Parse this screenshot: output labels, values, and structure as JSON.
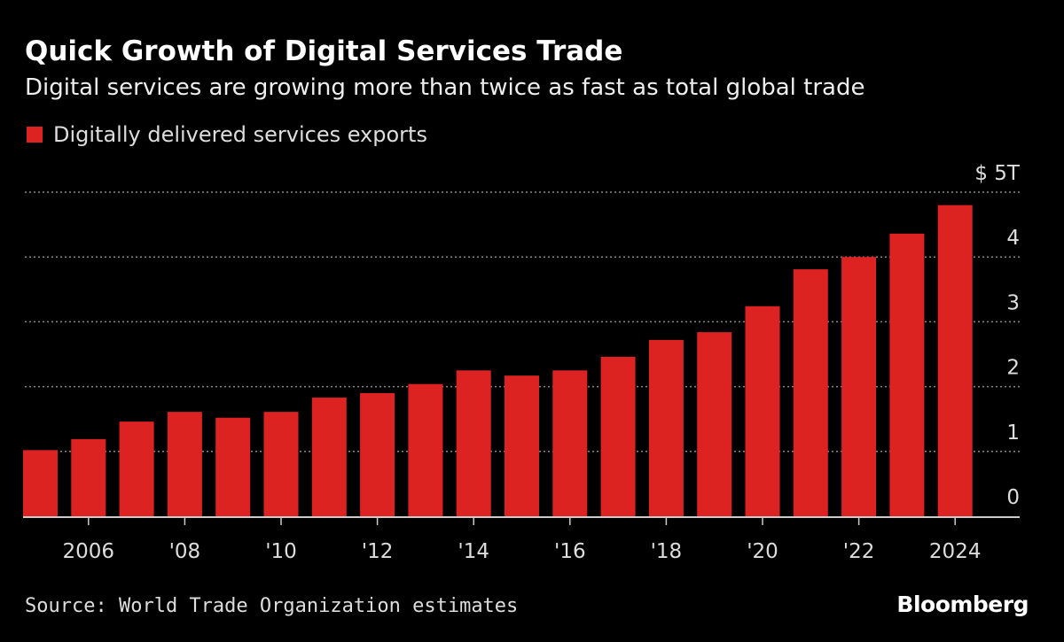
{
  "title": "Quick Growth of Digital Services Trade",
  "subtitle": "Digital services are growing more than twice as fast as total global trade",
  "source": "Source: World Trade Organization estimates",
  "logo": "Bloomberg",
  "chart_data": {
    "type": "bar",
    "title": "Quick Growth of Digital Services Trade",
    "series": [
      {
        "name": "Digitally delivered services exports",
        "color": "#dd2222",
        "values": [
          1.02,
          1.19,
          1.46,
          1.61,
          1.52,
          1.61,
          1.83,
          1.9,
          2.04,
          2.25,
          2.17,
          2.25,
          2.46,
          2.72,
          2.84,
          3.24,
          3.81,
          4.0,
          4.36,
          4.8
        ]
      }
    ],
    "categories": [
      "2005",
      "2006",
      "2007",
      "2008",
      "2009",
      "2010",
      "2011",
      "2012",
      "2013",
      "2014",
      "2015",
      "2016",
      "2017",
      "2018",
      "2019",
      "2020",
      "2021",
      "2022",
      "2023",
      "2024"
    ],
    "x_tick_labels": [
      {
        "category": "2006",
        "label": "2006"
      },
      {
        "category": "2008",
        "label": "'08"
      },
      {
        "category": "2010",
        "label": "'10"
      },
      {
        "category": "2012",
        "label": "'12"
      },
      {
        "category": "2014",
        "label": "'14"
      },
      {
        "category": "2016",
        "label": "'16"
      },
      {
        "category": "2018",
        "label": "'18"
      },
      {
        "category": "2020",
        "label": "'20"
      },
      {
        "category": "2022",
        "label": "'22"
      },
      {
        "category": "2024",
        "label": "2024"
      }
    ],
    "y_ticks": [
      0,
      1,
      2,
      3,
      4,
      5
    ],
    "y_tick_labels": [
      "0",
      "1",
      "2",
      "3",
      "4",
      "$ 5T"
    ],
    "ylim": [
      0,
      5
    ],
    "y_axis_position": "right",
    "grid": true,
    "legend": "top-left",
    "xlabel": "",
    "ylabel": ""
  }
}
